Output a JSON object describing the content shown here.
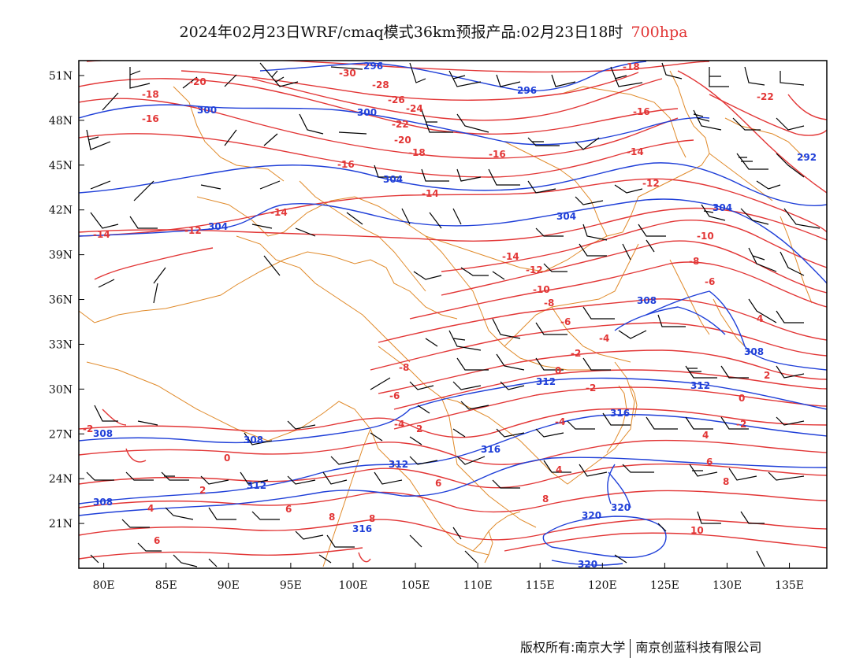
{
  "title": {
    "main": "2024年02月23日WRF/cmaq模式36km预报产品:02月23日18时",
    "level": "700hpa"
  },
  "colors": {
    "temperature": "#e23636",
    "height": "#1f3fd8",
    "border": "#e08a2a",
    "wind": "#000000",
    "frame": "#000000"
  },
  "axes": {
    "lon_range": [
      78,
      138
    ],
    "lat_range": [
      18,
      52
    ],
    "lon_ticks": [
      "80E",
      "85E",
      "90E",
      "95E",
      "100E",
      "105E",
      "110E",
      "115E",
      "120E",
      "125E",
      "130E",
      "135E"
    ],
    "lat_ticks": [
      "51N",
      "48N",
      "45N",
      "42N",
      "39N",
      "36N",
      "33N",
      "30N",
      "27N",
      "24N",
      "21N"
    ]
  },
  "temperature_labels": [
    "-30",
    "-28",
    "-26",
    "-24",
    "-22",
    "-20",
    "-20",
    "-18",
    "-18",
    "-18",
    "-16",
    "-16",
    "-16",
    "-16",
    "-14",
    "-14",
    "-14",
    "-14",
    "-14",
    "-12",
    "-12",
    "-12",
    "-10",
    "-10",
    "-8",
    "-8",
    "-8",
    "-6",
    "-6",
    "-6",
    "-4",
    "-4",
    "-2",
    "-2",
    "-2",
    "0",
    "0",
    "0",
    "-2",
    "-4",
    "2",
    "2",
    "2",
    "4",
    "4",
    "4",
    "4",
    "6",
    "6",
    "6",
    "6",
    "8",
    "8",
    "8",
    "8",
    "10",
    "-22"
  ],
  "height_labels": [
    "296",
    "296",
    "300",
    "300",
    "304",
    "304",
    "304",
    "304",
    "292",
    "308",
    "308",
    "308",
    "308",
    "312",
    "312",
    "312",
    "312",
    "316",
    "316",
    "316",
    "320",
    "320",
    "320"
  ],
  "footer": {
    "left": "版权所有:南京大学",
    "right": "南京创蓝科技有限公司"
  }
}
